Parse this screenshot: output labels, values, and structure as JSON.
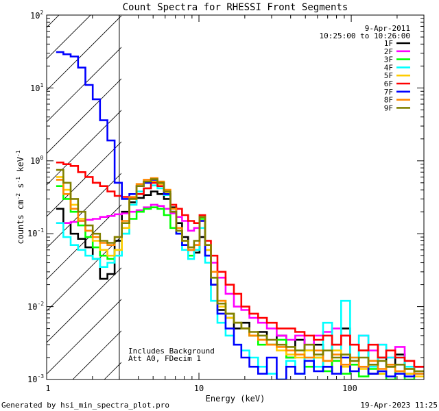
{
  "chart_data": {
    "type": "line",
    "title": "Count Spectra for RHESSI Front Segments",
    "xlabel": "Energy (keV)",
    "ylabel": "counts cm-2 s-1 keV-1",
    "xscale": "log",
    "yscale": "log",
    "xlim": [
      1,
      300
    ],
    "ylim": [
      0.001,
      100
    ],
    "x_ticks": [
      {
        "value": 1,
        "label": "1"
      },
      {
        "value": 10,
        "label": "10"
      },
      {
        "value": 100,
        "label": "100"
      }
    ],
    "y_ticks": [
      {
        "value": 0.001,
        "base": "10",
        "exp": "-3"
      },
      {
        "value": 0.01,
        "base": "10",
        "exp": "-2"
      },
      {
        "value": 0.1,
        "base": "10",
        "exp": "-1"
      },
      {
        "value": 1,
        "base": "10",
        "exp": "0"
      },
      {
        "value": 10,
        "base": "10",
        "exp": "1"
      },
      {
        "value": 100,
        "base": "10",
        "exp": "2"
      }
    ],
    "hatched_region": {
      "from": 1,
      "to": 3
    },
    "date": "9-Apr-2011",
    "time_range": "10:25:00 to 10:26:00",
    "annotations": [
      "Includes Background",
      "Att A0, FDecim 1"
    ],
    "series": [
      {
        "name": "1F",
        "color": "#000000",
        "x": [
          1.22,
          1.36,
          1.52,
          1.7,
          1.9,
          2.12,
          2.37,
          2.65,
          2.95,
          3.3,
          3.7,
          4.1,
          4.6,
          5.1,
          5.6,
          6.2,
          6.8,
          7.4,
          8.1,
          8.9,
          9.7,
          10.5,
          11.5,
          12.5,
          14,
          16,
          18,
          20,
          23,
          26,
          30,
          35,
          40,
          46,
          53,
          61,
          70,
          80,
          92,
          105,
          120,
          140,
          160,
          180,
          210,
          240,
          280
        ],
        "y": [
          0.22,
          0.14,
          0.1,
          0.085,
          0.065,
          0.045,
          0.024,
          0.028,
          0.08,
          0.2,
          0.27,
          0.31,
          0.34,
          0.38,
          0.35,
          0.3,
          0.23,
          0.14,
          0.09,
          0.06,
          0.055,
          0.09,
          0.05,
          0.02,
          0.009,
          0.007,
          0.005,
          0.006,
          0.004,
          0.0045,
          0.003,
          0.004,
          0.002,
          0.0035,
          0.0025,
          0.003,
          0.0015,
          0.003,
          0.005,
          0.0018,
          0.0025,
          0.0012,
          0.002,
          0.0015,
          0.0022,
          0.0012,
          0.0015
        ]
      },
      {
        "name": "2F",
        "color": "#ff00ff",
        "x": [
          1.22,
          1.36,
          1.52,
          1.7,
          1.9,
          2.12,
          2.37,
          2.65,
          2.95,
          3.3,
          3.7,
          4.1,
          4.6,
          5.1,
          5.6,
          6.2,
          6.8,
          7.4,
          8.1,
          8.9,
          9.7,
          10.5,
          11.5,
          12.5,
          14,
          16,
          18,
          20,
          23,
          26,
          30,
          35,
          40,
          46,
          53,
          61,
          70,
          80,
          92,
          105,
          120,
          140,
          160,
          180,
          210,
          240,
          280
        ],
        "y": [
          0.14,
          0.14,
          0.145,
          0.15,
          0.155,
          0.16,
          0.17,
          0.175,
          0.185,
          0.19,
          0.2,
          0.21,
          0.23,
          0.25,
          0.24,
          0.22,
          0.19,
          0.17,
          0.15,
          0.11,
          0.12,
          0.15,
          0.06,
          0.04,
          0.025,
          0.015,
          0.01,
          0.009,
          0.007,
          0.006,
          0.005,
          0.004,
          0.0035,
          0.004,
          0.003,
          0.004,
          0.0045,
          0.005,
          0.004,
          0.003,
          0.004,
          0.0025,
          0.003,
          0.002,
          0.0028,
          0.0018,
          0.0015
        ]
      },
      {
        "name": "3F",
        "color": "#00ff00",
        "x": [
          1.22,
          1.36,
          1.52,
          1.7,
          1.9,
          2.12,
          2.37,
          2.65,
          2.95,
          3.3,
          3.7,
          4.1,
          4.6,
          5.1,
          5.6,
          6.2,
          6.8,
          7.4,
          8.1,
          8.9,
          9.7,
          10.5,
          11.5,
          12.5,
          14,
          16,
          18,
          20,
          23,
          26,
          30,
          35,
          40,
          46,
          53,
          61,
          70,
          80,
          92,
          105,
          120,
          140,
          160,
          180,
          210,
          240,
          280
        ],
        "y": [
          0.45,
          0.3,
          0.2,
          0.13,
          0.09,
          0.065,
          0.05,
          0.045,
          0.06,
          0.1,
          0.16,
          0.2,
          0.22,
          0.23,
          0.22,
          0.18,
          0.12,
          0.1,
          0.07,
          0.05,
          0.06,
          0.16,
          0.06,
          0.025,
          0.012,
          0.008,
          0.006,
          0.005,
          0.004,
          0.003,
          0.003,
          0.0035,
          0.002,
          0.0025,
          0.0015,
          0.002,
          0.0013,
          0.0018,
          0.0012,
          0.0016,
          0.0011,
          0.0014,
          0.0012,
          0.001,
          0.0013,
          0.001,
          0.0012
        ]
      },
      {
        "name": "4F",
        "color": "#00ffff",
        "x": [
          1.22,
          1.36,
          1.52,
          1.7,
          1.9,
          2.12,
          2.37,
          2.65,
          2.95,
          3.3,
          3.7,
          4.1,
          4.6,
          5.1,
          5.6,
          6.2,
          6.8,
          7.4,
          8.1,
          8.9,
          9.7,
          10.5,
          11.5,
          12.5,
          14,
          16,
          18,
          20,
          23,
          26,
          30,
          35,
          40,
          46,
          53,
          61,
          70,
          80,
          92,
          105,
          120,
          140,
          160,
          180,
          210,
          240,
          280
        ],
        "y": [
          0.14,
          0.09,
          0.07,
          0.06,
          0.05,
          0.045,
          0.035,
          0.04,
          0.05,
          0.1,
          0.25,
          0.38,
          0.42,
          0.46,
          0.42,
          0.34,
          0.2,
          0.1,
          0.06,
          0.045,
          0.06,
          0.12,
          0.04,
          0.012,
          0.006,
          0.004,
          0.003,
          0.0025,
          0.002,
          0.0015,
          0.0012,
          0.001,
          0.0018,
          0.0012,
          0.002,
          0.0015,
          0.006,
          0.0025,
          0.012,
          0.002,
          0.004,
          0.0015,
          0.003,
          0.002,
          0.002,
          0.0015,
          0.0012
        ]
      },
      {
        "name": "5F",
        "color": "#ffcc00",
        "x": [
          1.22,
          1.36,
          1.52,
          1.7,
          1.9,
          2.12,
          2.37,
          2.65,
          2.95,
          3.3,
          3.7,
          4.1,
          4.6,
          5.1,
          5.6,
          6.2,
          6.8,
          7.4,
          8.1,
          8.9,
          9.7,
          10.5,
          11.5,
          12.5,
          14,
          16,
          18,
          20,
          23,
          26,
          30,
          35,
          40,
          46,
          53,
          61,
          70,
          80,
          92,
          105,
          120,
          140,
          160,
          180,
          210,
          240,
          280
        ],
        "y": [
          0.6,
          0.4,
          0.25,
          0.16,
          0.11,
          0.08,
          0.06,
          0.05,
          0.06,
          0.12,
          0.3,
          0.45,
          0.5,
          0.52,
          0.48,
          0.36,
          0.2,
          0.12,
          0.08,
          0.06,
          0.07,
          0.15,
          0.06,
          0.02,
          0.01,
          0.007,
          0.006,
          0.005,
          0.004,
          0.0035,
          0.003,
          0.0025,
          0.0022,
          0.002,
          0.0025,
          0.002,
          0.0018,
          0.0025,
          0.0015,
          0.0018,
          0.0014,
          0.0016,
          0.0012,
          0.0015,
          0.0013,
          0.0012,
          0.0011
        ]
      },
      {
        "name": "6F",
        "color": "#ff0000",
        "x": [
          1.22,
          1.36,
          1.52,
          1.7,
          1.9,
          2.12,
          2.37,
          2.65,
          2.95,
          3.3,
          3.7,
          4.1,
          4.6,
          5.1,
          5.6,
          6.2,
          6.8,
          7.4,
          8.1,
          8.9,
          9.7,
          10.5,
          11.5,
          12.5,
          14,
          16,
          18,
          20,
          23,
          26,
          30,
          35,
          40,
          46,
          53,
          61,
          70,
          80,
          92,
          105,
          120,
          140,
          160,
          180,
          210,
          240,
          280
        ],
        "y": [
          0.95,
          0.9,
          0.85,
          0.7,
          0.6,
          0.5,
          0.45,
          0.38,
          0.33,
          0.32,
          0.31,
          0.35,
          0.42,
          0.5,
          0.45,
          0.35,
          0.25,
          0.22,
          0.18,
          0.15,
          0.14,
          0.18,
          0.08,
          0.05,
          0.03,
          0.02,
          0.015,
          0.01,
          0.008,
          0.007,
          0.006,
          0.005,
          0.005,
          0.0045,
          0.004,
          0.0035,
          0.004,
          0.003,
          0.004,
          0.003,
          0.0025,
          0.003,
          0.002,
          0.0025,
          0.002,
          0.0018,
          0.0015
        ]
      },
      {
        "name": "7F",
        "color": "#0000ff",
        "x": [
          1.22,
          1.36,
          1.52,
          1.7,
          1.9,
          2.12,
          2.37,
          2.65,
          2.95,
          3.3,
          3.7,
          4.1,
          4.6,
          5.1,
          5.6,
          6.2,
          6.8,
          7.4,
          8.1,
          8.9,
          9.7,
          10.5,
          11.5,
          12.5,
          14,
          16,
          18,
          20,
          23,
          26,
          30,
          35,
          40,
          46,
          53,
          61,
          70,
          80,
          92,
          105,
          120,
          140,
          160,
          180,
          210,
          240,
          280
        ],
        "y": [
          31,
          29,
          27,
          19,
          11,
          7,
          3.6,
          1.9,
          0.5,
          0.3,
          0.35,
          0.45,
          0.5,
          0.55,
          0.5,
          0.35,
          0.2,
          0.1,
          0.07,
          0.06,
          0.07,
          0.15,
          0.05,
          0.02,
          0.008,
          0.005,
          0.003,
          0.002,
          0.0015,
          0.0012,
          0.002,
          0.001,
          0.0015,
          0.0012,
          0.0018,
          0.0013,
          0.0015,
          0.0012,
          0.002,
          0.0013,
          0.0015,
          0.0012,
          0.0013,
          0.0011,
          0.0012,
          0.0011,
          0.0012
        ]
      },
      {
        "name": "8F",
        "color": "#ff8800",
        "x": [
          1.22,
          1.36,
          1.52,
          1.7,
          1.9,
          2.12,
          2.37,
          2.65,
          2.95,
          3.3,
          3.7,
          4.1,
          4.6,
          5.1,
          5.6,
          6.2,
          6.8,
          7.4,
          8.1,
          8.9,
          9.7,
          10.5,
          11.5,
          12.5,
          14,
          16,
          18,
          20,
          23,
          26,
          30,
          35,
          40,
          46,
          53,
          61,
          70,
          80,
          92,
          105,
          120,
          140,
          160,
          180,
          210,
          240,
          280
        ],
        "y": [
          0.55,
          0.35,
          0.22,
          0.15,
          0.11,
          0.09,
          0.075,
          0.07,
          0.09,
          0.15,
          0.32,
          0.48,
          0.55,
          0.58,
          0.52,
          0.4,
          0.22,
          0.12,
          0.08,
          0.06,
          0.07,
          0.17,
          0.07,
          0.03,
          0.012,
          0.008,
          0.006,
          0.005,
          0.004,
          0.0035,
          0.003,
          0.0028,
          0.0025,
          0.0022,
          0.002,
          0.0025,
          0.0018,
          0.0022,
          0.0016,
          0.002,
          0.0015,
          0.0018,
          0.0014,
          0.0016,
          0.0013,
          0.0014,
          0.0012
        ]
      },
      {
        "name": "9F",
        "color": "#808000",
        "x": [
          1.22,
          1.36,
          1.52,
          1.7,
          1.9,
          2.12,
          2.37,
          2.65,
          2.95,
          3.3,
          3.7,
          4.1,
          4.6,
          5.1,
          5.6,
          6.2,
          6.8,
          7.4,
          8.1,
          8.9,
          9.7,
          10.5,
          11.5,
          12.5,
          14,
          16,
          18,
          20,
          23,
          26,
          30,
          35,
          40,
          46,
          53,
          61,
          70,
          80,
          92,
          105,
          120,
          140,
          160,
          180,
          210,
          240,
          280
        ],
        "y": [
          0.75,
          0.5,
          0.3,
          0.2,
          0.13,
          0.1,
          0.08,
          0.075,
          0.09,
          0.14,
          0.3,
          0.45,
          0.52,
          0.56,
          0.5,
          0.38,
          0.2,
          0.11,
          0.08,
          0.065,
          0.08,
          0.17,
          0.07,
          0.025,
          0.011,
          0.008,
          0.006,
          0.005,
          0.0045,
          0.004,
          0.0035,
          0.003,
          0.0028,
          0.0025,
          0.003,
          0.0022,
          0.0025,
          0.002,
          0.0022,
          0.0018,
          0.002,
          0.0016,
          0.0018,
          0.0015,
          0.0016,
          0.0014,
          0.0013
        ]
      }
    ]
  },
  "footer": {
    "generated_by": "Generated by hsi_min_spectra_plot.pro",
    "timestamp": "19-Apr-2023 11:25"
  }
}
